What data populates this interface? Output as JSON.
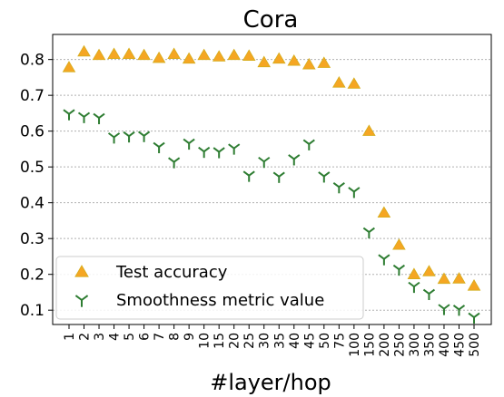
{
  "chart_data": {
    "type": "scatter",
    "title": "Cora",
    "xlabel": "#layer/hop",
    "ylabel": "",
    "categories": [
      "1",
      "2",
      "3",
      "4",
      "5",
      "6",
      "7",
      "8",
      "9",
      "10",
      "15",
      "20",
      "25",
      "30",
      "35",
      "40",
      "45",
      "50",
      "75",
      "100",
      "150",
      "200",
      "250",
      "300",
      "350",
      "400",
      "450",
      "500"
    ],
    "yticks": [
      "0.1",
      "0.2",
      "0.3",
      "0.4",
      "0.5",
      "0.6",
      "0.7",
      "0.8"
    ],
    "ylim": [
      0.06,
      0.87
    ],
    "grid": "horizontal",
    "legend_position": "lower-left",
    "series": [
      {
        "name": "Test accuracy",
        "marker": "triangle",
        "color": "#f5a623",
        "values": [
          0.778,
          0.822,
          0.812,
          0.815,
          0.815,
          0.812,
          0.804,
          0.815,
          0.802,
          0.812,
          0.808,
          0.812,
          0.81,
          0.792,
          0.802,
          0.796,
          0.786,
          0.79,
          0.735,
          0.732,
          0.6,
          0.372,
          0.282,
          0.2,
          0.208,
          0.187,
          0.188,
          0.168
        ]
      },
      {
        "name": "Smoothness metric value",
        "marker": "tri_down",
        "color": "#2e7d32",
        "values": [
          0.648,
          0.64,
          0.637,
          0.583,
          0.586,
          0.587,
          0.556,
          0.514,
          0.566,
          0.543,
          0.542,
          0.552,
          0.476,
          0.515,
          0.473,
          0.522,
          0.564,
          0.474,
          0.444,
          0.431,
          0.318,
          0.243,
          0.214,
          0.166,
          0.146,
          0.104,
          0.102,
          0.08
        ]
      }
    ]
  }
}
